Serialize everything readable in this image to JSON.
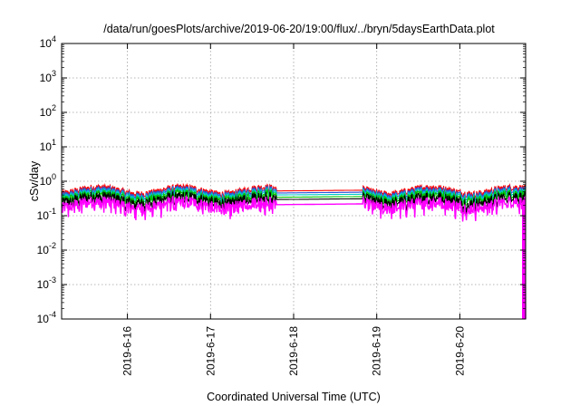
{
  "chart_data": {
    "type": "area",
    "title": "/data/run/goesPlots/archive/2019-06-20/19:00/flux/../bryn/5daysEarthData.plot",
    "xlabel": "Coordinated Universal Time (UTC)",
    "ylabel": "cSv/day",
    "yscale": "log",
    "ylim": [
      0.0001,
      10000
    ],
    "xlim": [
      "2019-06-15 05:00",
      "2019-06-20 19:00"
    ],
    "grid": true,
    "yticks": [
      {
        "base": "10",
        "exp": "4",
        "value": 10000
      },
      {
        "base": "10",
        "exp": "3",
        "value": 1000
      },
      {
        "base": "10",
        "exp": "2",
        "value": 100
      },
      {
        "base": "10",
        "exp": "1",
        "value": 10
      },
      {
        "base": "10",
        "exp": "0",
        "value": 1
      },
      {
        "base": "10",
        "exp": "-1",
        "value": 0.1
      },
      {
        "base": "10",
        "exp": "-2",
        "value": 0.01
      },
      {
        "base": "10",
        "exp": "-3",
        "value": 0.001
      },
      {
        "base": "10",
        "exp": "-4",
        "value": 0.0001
      }
    ],
    "xticks": [
      {
        "label": "2019-6-16",
        "value": "2019-06-16 00:00"
      },
      {
        "label": "2019-6-17",
        "value": "2019-06-17 00:00"
      },
      {
        "label": "2019-6-18",
        "value": "2019-06-18 00:00"
      },
      {
        "label": "2019-6-19",
        "value": "2019-06-19 00:00"
      },
      {
        "label": "2019-6-20",
        "value": "2019-06-20 00:00"
      }
    ],
    "data_gap": [
      "2019-06-17 19:00",
      "2019-06-18 20:00"
    ],
    "series": [
      {
        "color": "#ff0000",
        "base_level": 0.55
      },
      {
        "color": "#2c4fd8",
        "base_level": 0.48
      },
      {
        "color": "#00c8c8",
        "base_level": 0.42
      },
      {
        "color": "#00c400",
        "base_level": 0.36
      },
      {
        "color": "#000000",
        "base_level": 0.31
      },
      {
        "color": "#ff00ff",
        "base_level": 0.22
      }
    ]
  }
}
